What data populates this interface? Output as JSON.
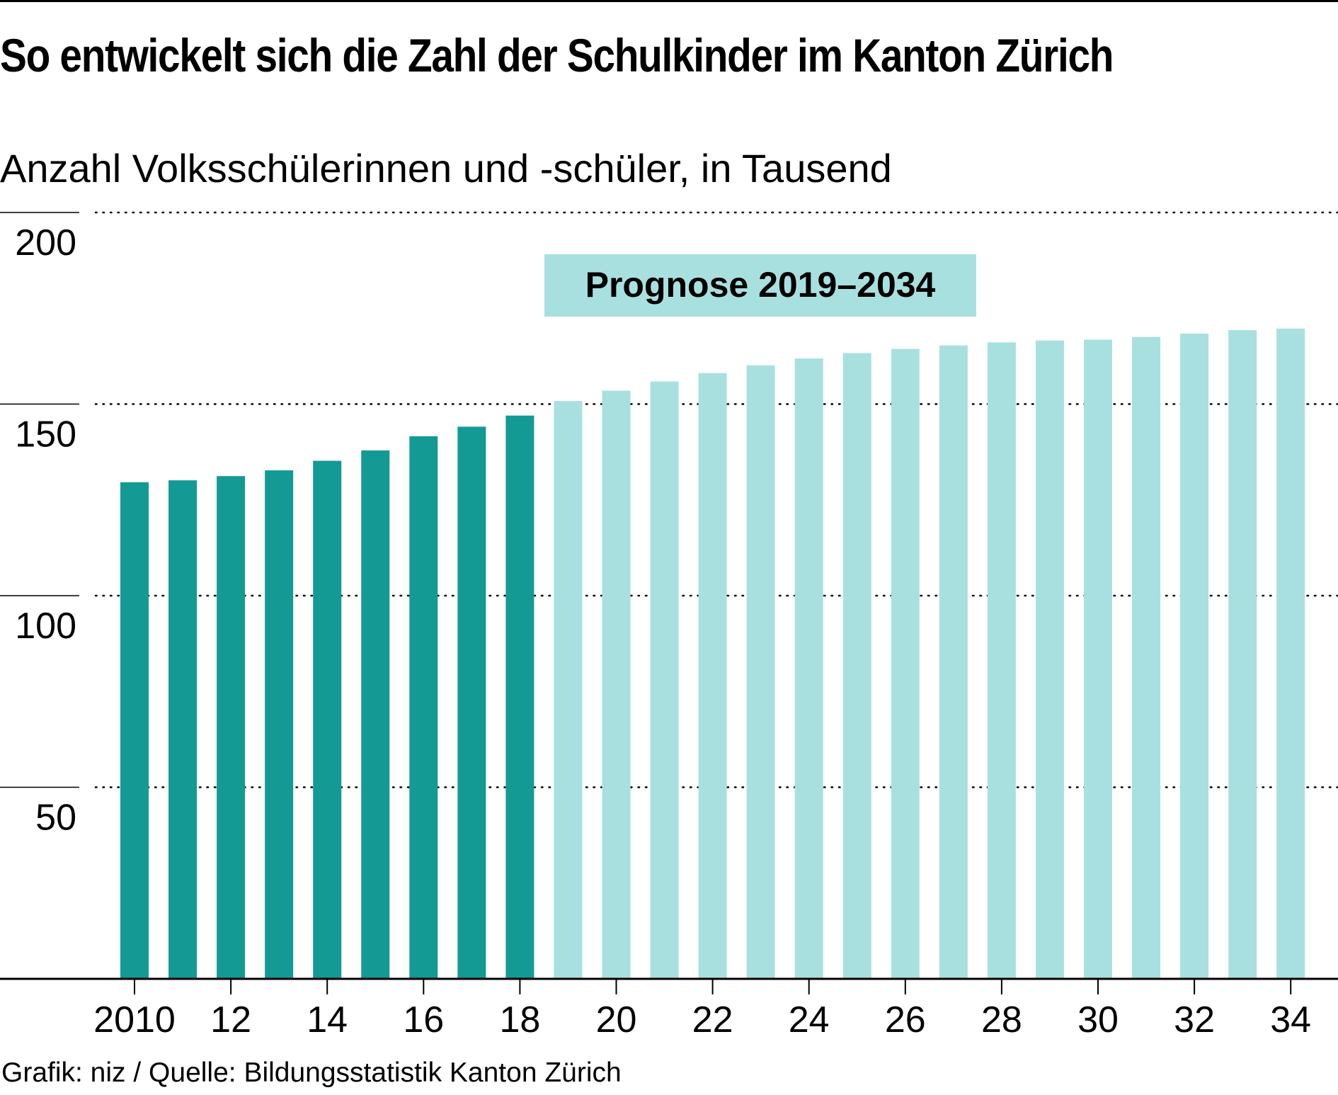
{
  "title": "So entwickelt sich die Zahl der Schulkinder im Kanton Zürich",
  "subtitle": "Anzahl Volksschülerinnen und -schüler, in Tausend",
  "footer": "Grafik: niz / Quelle: Bildungsstatistik Kanton Zürich",
  "colors": {
    "actual": "#139a94",
    "forecast": "#a8e0df"
  },
  "chart_data": {
    "type": "bar",
    "title": "So entwickelt sich die Zahl der Schulkinder im Kanton Zürich",
    "ylabel": "Anzahl Volksschülerinnen und -schüler, in Tausend",
    "xlabel": "",
    "ylim": [
      0,
      200
    ],
    "yticks": [
      50,
      100,
      150,
      200
    ],
    "grid": true,
    "annotation": "Prognose 2019–2034",
    "categories": [
      2010,
      2011,
      2012,
      2013,
      2014,
      2015,
      2016,
      2017,
      2018,
      2019,
      2020,
      2021,
      2022,
      2023,
      2024,
      2025,
      2026,
      2027,
      2028,
      2029,
      2030,
      2031,
      2032,
      2033,
      2034
    ],
    "xtick_labels": [
      "2010",
      "12",
      "14",
      "16",
      "18",
      "20",
      "22",
      "24",
      "26",
      "28",
      "30",
      "32",
      "34"
    ],
    "series": [
      {
        "name": "Ist",
        "values": [
          129.6,
          130.1,
          131.2,
          132.7,
          135.2,
          137.9,
          141.6,
          144.1,
          147.0,
          null,
          null,
          null,
          null,
          null,
          null,
          null,
          null,
          null,
          null,
          null,
          null,
          null,
          null,
          null,
          null
        ]
      },
      {
        "name": "Prognose",
        "values": [
          null,
          null,
          null,
          null,
          null,
          null,
          null,
          null,
          null,
          150.8,
          153.5,
          155.9,
          158.1,
          160.1,
          161.9,
          163.3,
          164.4,
          165.3,
          166.1,
          166.6,
          166.8,
          167.5,
          168.4,
          169.3,
          169.7
        ]
      }
    ]
  }
}
